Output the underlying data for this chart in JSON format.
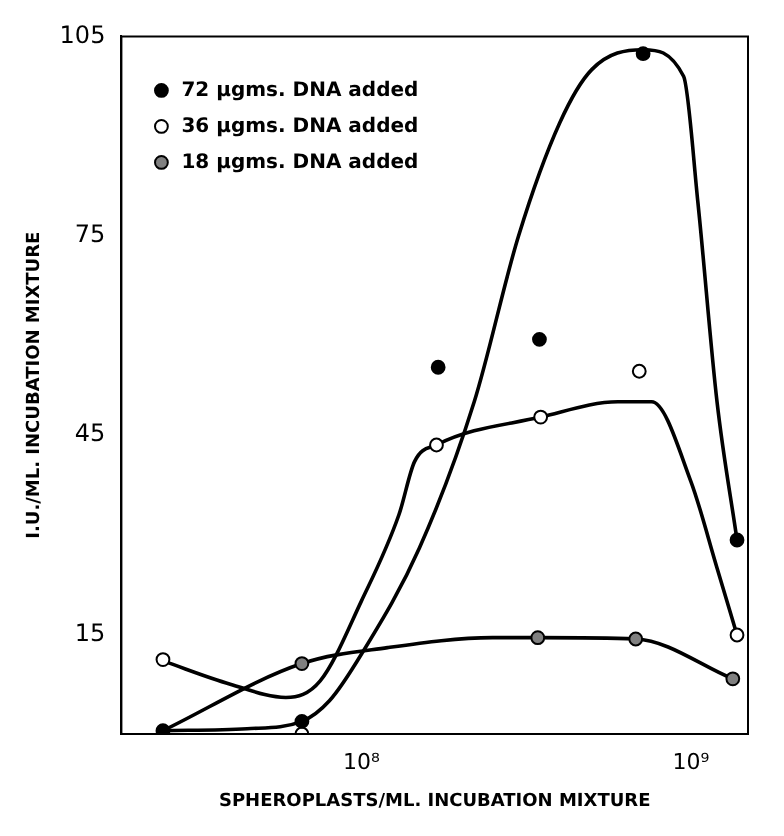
{
  "chart_data": {
    "type": "scatter",
    "xlabel": "SPHEROPLASTS/ML. INCUBATION MIXTURE",
    "ylabel": "I.U./ML. INCUBATION MIXTURE",
    "log": "x",
    "xlim": [
      18700000,
      1490000000
    ],
    "xticks": [
      {
        "value": 100000000,
        "label": "10⁸"
      },
      {
        "value": 1000000000,
        "label": "10⁹"
      }
    ],
    "ylim": [
      0,
      105
    ],
    "yticks": [
      15,
      45,
      75,
      105
    ],
    "legend": "top left",
    "marker": "circle",
    "grid": false,
    "series": [
      {
        "name": "72 μgms. DNA added",
        "color": "#000000",
        "x": [
          25000000,
          66000000,
          171000000,
          347000000,
          716000000,
          1380000000
        ],
        "values": [
          0.5,
          1.9,
          55.2,
          59.4,
          102.4,
          29.2
        ]
      },
      {
        "name": "36 μgms. DNA added",
        "color": "#ffffff",
        "x": [
          25000000,
          66000000,
          169000000,
          350000000,
          697000000,
          1380000000
        ],
        "values": [
          11.2,
          0,
          43.5,
          47.7,
          54.6,
          14.9
        ]
      },
      {
        "name": "18 μgms. DNA added",
        "color": "#808080",
        "x": [
          66000000,
          343000000,
          680000000,
          1340000000
        ],
        "values": [
          10.6,
          14.5,
          14.3,
          8.3
        ]
      },
      {
        "color": "#000000",
        "type": "line",
        "marker": "none",
        "x": [
          25000000,
          45000000,
          66000000,
          80000000,
          100000000,
          150000000,
          220000000,
          300000000,
          400000000,
          500000000,
          716000000,
          950000000,
          1050000000,
          1200000000,
          1380000000
        ],
        "values": [
          0.5,
          0.8,
          1.9,
          5,
          12,
          28,
          50,
          75,
          92,
          100,
          103,
          99,
          80,
          50,
          29.2
        ]
      },
      {
        "color": "#000000",
        "type": "line",
        "marker": "none",
        "x": [
          25000000,
          40000000,
          59000000,
          75000000,
          100000000,
          130000000,
          145000000,
          169000000,
          350000000,
          600000000,
          760000000,
          1000000000,
          1200000000,
          1380000000
        ],
        "values": [
          11,
          7.5,
          5.5,
          8,
          20,
          33,
          41,
          43.5,
          47.7,
          50,
          50,
          38,
          25,
          14.9
        ]
      },
      {
        "color": "#000000",
        "type": "line",
        "marker": "none",
        "x": [
          25000000,
          66000000,
          120000000,
          250000000,
          343000000,
          680000000,
          1340000000
        ],
        "values": [
          0.5,
          10.6,
          13,
          14.5,
          14.5,
          14.3,
          8.3
        ]
      }
    ]
  }
}
